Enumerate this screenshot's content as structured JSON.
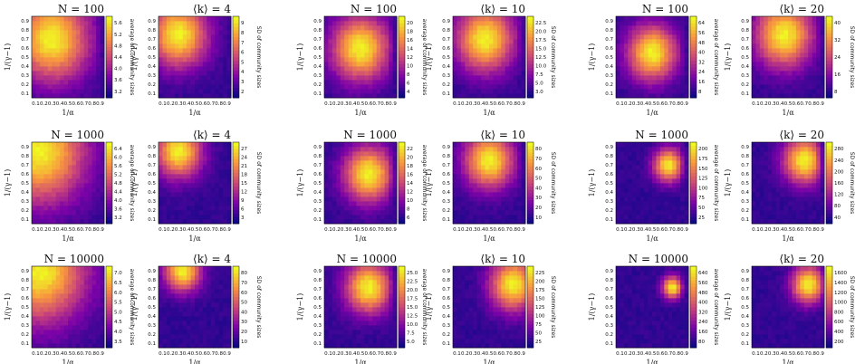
{
  "figure": {
    "rows": [
      {
        "N_label": "N = 100",
        "k_label": "⟨k⟩ = 4"
      },
      {
        "N_label": "N = 1000",
        "k_label": "⟨k⟩ = 4"
      },
      {
        "N_label": "N = 10000",
        "k_label": "⟨k⟩ = 4"
      }
    ]
  },
  "chart_data": {
    "type": "heatmap",
    "description_axes": {
      "xlabel": "1/α",
      "ylabel": "1/(γ−1)"
    },
    "x_ticks": [
      "0.1",
      "0.2",
      "0.3",
      "0.4",
      "0.5",
      "0.6",
      "0.7",
      "0.8",
      "0.9"
    ],
    "y_ticks": [
      "0.1",
      "0.2",
      "0.3",
      "0.4",
      "0.5",
      "0.6",
      "0.7",
      "0.8",
      "0.9"
    ],
    "colormap": "plasma",
    "colorbar_labels": {
      "avg": "average of community sizes",
      "sd": "SD of community sizes"
    },
    "panels": [
      {
        "row": 0,
        "col": 0,
        "title": "N = 100",
        "cbar": "avg",
        "cticks": [
          "3.2",
          "3.6",
          "4.0",
          "4.4",
          "4.8",
          "5.2",
          "5.6"
        ],
        "peak": [
          0.3,
          0.7
        ],
        "spread": 0.45,
        "edge": 0.85
      },
      {
        "row": 0,
        "col": 1,
        "title": "⟨k⟩ = 4",
        "cbar": "sd",
        "cticks": [
          "2",
          "3",
          "4",
          "5",
          "6",
          "7",
          "8",
          "9"
        ],
        "peak": [
          0.3,
          0.75
        ],
        "spread": 0.35,
        "edge": 0.9
      },
      {
        "row": 0,
        "col": 2,
        "title": "N = 100",
        "cbar": "avg",
        "cticks": [
          "4",
          "6",
          "8",
          "10",
          "12",
          "14",
          "16",
          "18",
          "20"
        ],
        "peak": [
          0.5,
          0.6
        ],
        "spread": 0.35,
        "edge": 0.85
      },
      {
        "row": 0,
        "col": 3,
        "title": "⟨k⟩ = 10",
        "cbar": "sd",
        "cticks": [
          "3.0",
          "5.0",
          "7.5",
          "10.0",
          "12.5",
          "15.0",
          "17.5",
          "20.0",
          "22.5"
        ],
        "peak": [
          0.45,
          0.7
        ],
        "spread": 0.35,
        "edge": 0.85
      },
      {
        "row": 0,
        "col": 4,
        "title": "N = 100",
        "cbar": "avg",
        "cticks": [
          "8",
          "16",
          "24",
          "32",
          "40",
          "48",
          "56",
          "64"
        ],
        "peak": [
          0.5,
          0.55
        ],
        "spread": 0.3,
        "edge": 0.85
      },
      {
        "row": 0,
        "col": 5,
        "title": "⟨k⟩ = 20",
        "cbar": "sd",
        "cticks": [
          "8",
          "16",
          "24",
          "32",
          "40"
        ],
        "peak": [
          0.45,
          0.75
        ],
        "spread": 0.35,
        "edge": 0.85
      },
      {
        "row": 1,
        "col": 0,
        "title": "N = 1000",
        "cbar": "avg",
        "cticks": [
          "3.2",
          "3.6",
          "4.0",
          "4.4",
          "4.8",
          "5.2",
          "5.6",
          "6.0",
          "6.4"
        ],
        "peak": [
          0.15,
          0.85
        ],
        "spread": 0.55,
        "edge": 0.95
      },
      {
        "row": 1,
        "col": 1,
        "title": "⟨k⟩ = 4",
        "cbar": "sd",
        "cticks": [
          "3",
          "6",
          "9",
          "12",
          "15",
          "18",
          "21",
          "24",
          "27"
        ],
        "peak": [
          0.3,
          0.85
        ],
        "spread": 0.28,
        "edge": 0.9
      },
      {
        "row": 1,
        "col": 2,
        "title": "N = 1000",
        "cbar": "avg",
        "cticks": [
          "6",
          "8",
          "10",
          "12",
          "14",
          "16",
          "18",
          "20",
          "22"
        ],
        "peak": [
          0.6,
          0.6
        ],
        "spread": 0.3,
        "edge": 0.85
      },
      {
        "row": 1,
        "col": 3,
        "title": "⟨k⟩ = 10",
        "cbar": "sd",
        "cticks": [
          "10",
          "20",
          "30",
          "40",
          "50",
          "60",
          "70",
          "80"
        ],
        "peak": [
          0.5,
          0.75
        ],
        "spread": 0.3,
        "edge": 0.85
      },
      {
        "row": 1,
        "col": 4,
        "title": "N = 1000",
        "cbar": "avg",
        "cticks": [
          "25",
          "50",
          "75",
          "100",
          "125",
          "150",
          "175",
          "200"
        ],
        "peak": [
          0.7,
          0.7
        ],
        "spread": 0.18,
        "edge": 0.85
      },
      {
        "row": 1,
        "col": 5,
        "title": "⟨k⟩ = 20",
        "cbar": "sd",
        "cticks": [
          "40",
          "80",
          "120",
          "160",
          "200",
          "240",
          "280"
        ],
        "peak": [
          0.7,
          0.75
        ],
        "spread": 0.25,
        "edge": 0.85
      },
      {
        "row": 2,
        "col": 0,
        "title": "N = 10000",
        "cbar": "avg",
        "cticks": [
          "3.5",
          "4.0",
          "4.5",
          "5.0",
          "5.5",
          "6.0",
          "6.5",
          "7.0"
        ],
        "peak": [
          0.15,
          0.9
        ],
        "spread": 0.55,
        "edge": 0.95
      },
      {
        "row": 2,
        "col": 1,
        "title": "⟨k⟩ = 4",
        "cbar": "sd",
        "cticks": [
          "10",
          "20",
          "30",
          "40",
          "50",
          "60",
          "70",
          "80"
        ],
        "peak": [
          0.35,
          0.9
        ],
        "spread": 0.22,
        "edge": 0.9
      },
      {
        "row": 2,
        "col": 2,
        "title": "N = 10000",
        "cbar": "avg",
        "cticks": [
          "5.0",
          "7.5",
          "10.0",
          "12.5",
          "15.0",
          "17.5",
          "20.0",
          "22.5",
          "25.0"
        ],
        "peak": [
          0.6,
          0.72
        ],
        "spread": 0.28,
        "edge": 0.85
      },
      {
        "row": 2,
        "col": 3,
        "title": "⟨k⟩ = 10",
        "cbar": "sd",
        "cticks": [
          "25",
          "50",
          "75",
          "100",
          "125",
          "150",
          "175",
          "200",
          "225"
        ],
        "peak": [
          0.8,
          0.75
        ],
        "spread": 0.28,
        "edge": 0.95
      },
      {
        "row": 2,
        "col": 4,
        "title": "N = 10000",
        "cbar": "avg",
        "cticks": [
          "80",
          "160",
          "240",
          "320",
          "400",
          "480",
          "560",
          "640"
        ],
        "peak": [
          0.75,
          0.72
        ],
        "spread": 0.12,
        "edge": 0.85
      },
      {
        "row": 2,
        "col": 5,
        "title": "⟨k⟩ = 20",
        "cbar": "sd",
        "cticks": [
          "200",
          "400",
          "600",
          "800",
          "1000",
          "1200",
          "1400",
          "1600"
        ],
        "peak": [
          0.75,
          0.75
        ],
        "spread": 0.2,
        "edge": 0.9
      }
    ]
  }
}
